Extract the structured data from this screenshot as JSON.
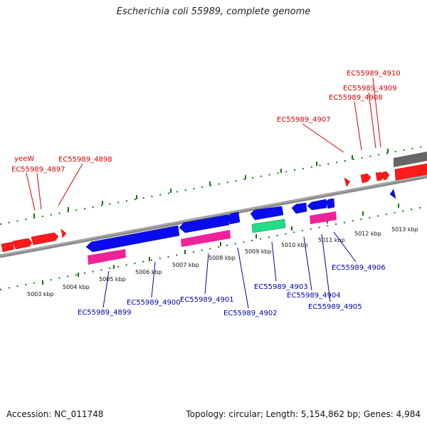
{
  "title": "Escherichia coli 55989, complete genome",
  "footer": {
    "accession": "Accession: NC_011748",
    "summary": "Topology: circular; Length: 5,154,862 bp; Genes: 4,984"
  },
  "colors": {
    "top_label": "#dd0000",
    "bottom_label": "#0000aa",
    "forward_gene": "#ff0000",
    "reverse_gene": "#0000ee",
    "rna": "#ee2299",
    "special": "#22dd88",
    "backbone": "#888888",
    "tick": "#117711"
  },
  "scale": {
    "unit": "kbp",
    "labels": [
      {
        "text": "5003 kbp"
      },
      {
        "text": "5004 kbp"
      },
      {
        "text": "5005 kbp"
      },
      {
        "text": "5006 kbp"
      },
      {
        "text": "5007 kbp"
      },
      {
        "text": "5008 kbp"
      },
      {
        "text": "5009 kbp"
      },
      {
        "text": "5010 kbp"
      },
      {
        "text": "5011 kbp"
      },
      {
        "text": "5012 kbp"
      },
      {
        "text": "5013 kbp"
      }
    ]
  },
  "top_labels": [
    {
      "text": "yeeW"
    },
    {
      "text": "EC55989_4897"
    },
    {
      "text": "EC55989_4898"
    },
    {
      "text": "EC55989_4907"
    },
    {
      "text": "EC55989_4908"
    },
    {
      "text": "EC55989_4909"
    },
    {
      "text": "EC55989_4910"
    }
  ],
  "bottom_labels": [
    {
      "text": "EC55989_4899"
    },
    {
      "text": "EC55989_4900"
    },
    {
      "text": "EC55989_4901"
    },
    {
      "text": "EC55989_4902"
    },
    {
      "text": "EC55989_4903"
    },
    {
      "text": "EC55989_4904"
    },
    {
      "text": "EC55989_4905"
    },
    {
      "text": "EC55989_4906"
    }
  ]
}
